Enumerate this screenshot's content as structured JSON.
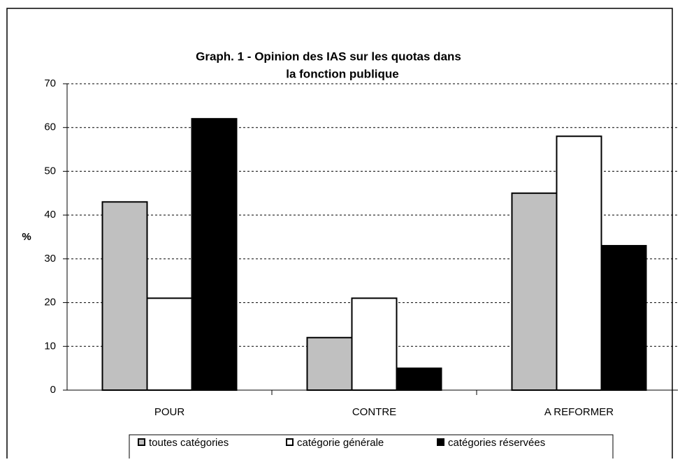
{
  "chart_data": {
    "type": "bar",
    "title": [
      "Graph. 1 - Opinion des IAS sur les quotas dans",
      "la fonction publique"
    ],
    "y_label": "%",
    "categories": [
      "POUR",
      "CONTRE",
      "A REFORMER"
    ],
    "series": [
      {
        "name": "toutes catégories",
        "color": "#c0c0c0",
        "values": [
          43,
          12,
          45
        ]
      },
      {
        "name": "catégorie générale",
        "color": "#ffffff",
        "values": [
          21,
          21,
          58
        ]
      },
      {
        "name": "catégories réservées",
        "color": "#000000",
        "values": [
          62,
          5,
          33
        ]
      }
    ],
    "ylim": [
      0,
      70
    ],
    "yticks": [
      0,
      10,
      20,
      30,
      40,
      50,
      60,
      70
    ],
    "grid": true,
    "legend": "bottom"
  }
}
